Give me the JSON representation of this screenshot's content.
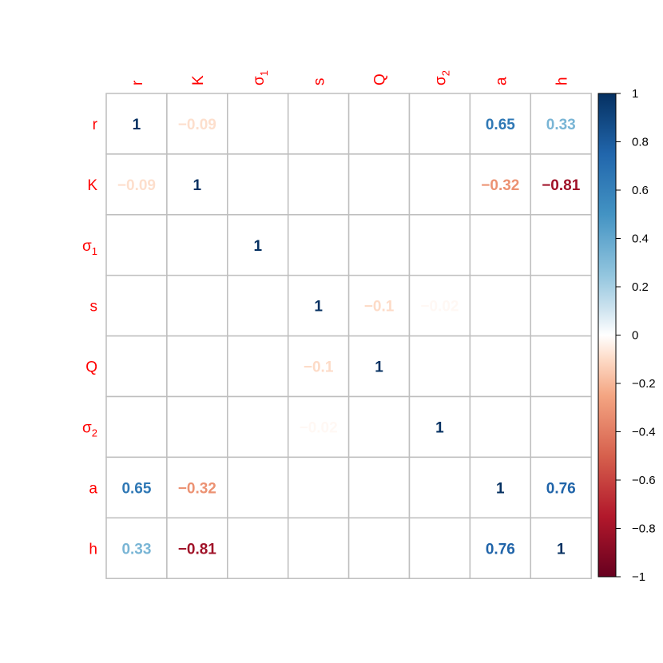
{
  "chart_data": {
    "type": "heatmap",
    "variables": [
      {
        "key": "r",
        "base": "r",
        "sub": ""
      },
      {
        "key": "K",
        "base": "K",
        "sub": ""
      },
      {
        "key": "sigma1",
        "base": "σ",
        "sub": "1"
      },
      {
        "key": "s",
        "base": "s",
        "sub": ""
      },
      {
        "key": "Q",
        "base": "Q",
        "sub": ""
      },
      {
        "key": "sigma2",
        "base": "σ",
        "sub": "2"
      },
      {
        "key": "a",
        "base": "a",
        "sub": ""
      },
      {
        "key": "h",
        "base": "h",
        "sub": ""
      }
    ],
    "matrix": [
      [
        1,
        -0.09,
        0,
        0,
        0,
        0,
        0.65,
        0.33
      ],
      [
        -0.09,
        1,
        0,
        0,
        0,
        0,
        -0.32,
        -0.81
      ],
      [
        0,
        0,
        1,
        0,
        0,
        0,
        0,
        0
      ],
      [
        0,
        0,
        0,
        1,
        -0.1,
        -0.02,
        0,
        0
      ],
      [
        0,
        0,
        0,
        -0.1,
        1,
        0,
        0,
        0
      ],
      [
        0,
        0,
        0,
        -0.02,
        0,
        1,
        0,
        0
      ],
      [
        0.65,
        -0.32,
        0,
        0,
        0,
        0,
        1,
        0.76
      ],
      [
        0.33,
        -0.81,
        0,
        0,
        0,
        0,
        0.76,
        1
      ]
    ],
    "color_scale": {
      "range": [
        -1,
        1
      ],
      "ticks": [
        "1",
        "0.8",
        "0.6",
        "0.4",
        "0.2",
        "0",
        "−0.2",
        "−0.4",
        "−0.6",
        "−0.8",
        "−1"
      ],
      "stops": [
        {
          "v": -1.0,
          "color": "#67001F"
        },
        {
          "v": -0.75,
          "color": "#B2182B"
        },
        {
          "v": -0.5,
          "color": "#D6604D"
        },
        {
          "v": -0.25,
          "color": "#F4A582"
        },
        {
          "v": -0.1,
          "color": "#FDDBC7"
        },
        {
          "v": 0.0,
          "color": "#FFFFFF"
        },
        {
          "v": 0.1,
          "color": "#D1E5F0"
        },
        {
          "v": 0.25,
          "color": "#92C5DE"
        },
        {
          "v": 0.5,
          "color": "#4393C3"
        },
        {
          "v": 0.75,
          "color": "#2166AC"
        },
        {
          "v": 1.0,
          "color": "#053061"
        }
      ]
    },
    "label_color": "#FF0000",
    "grid_color": "#BEBEBE"
  }
}
